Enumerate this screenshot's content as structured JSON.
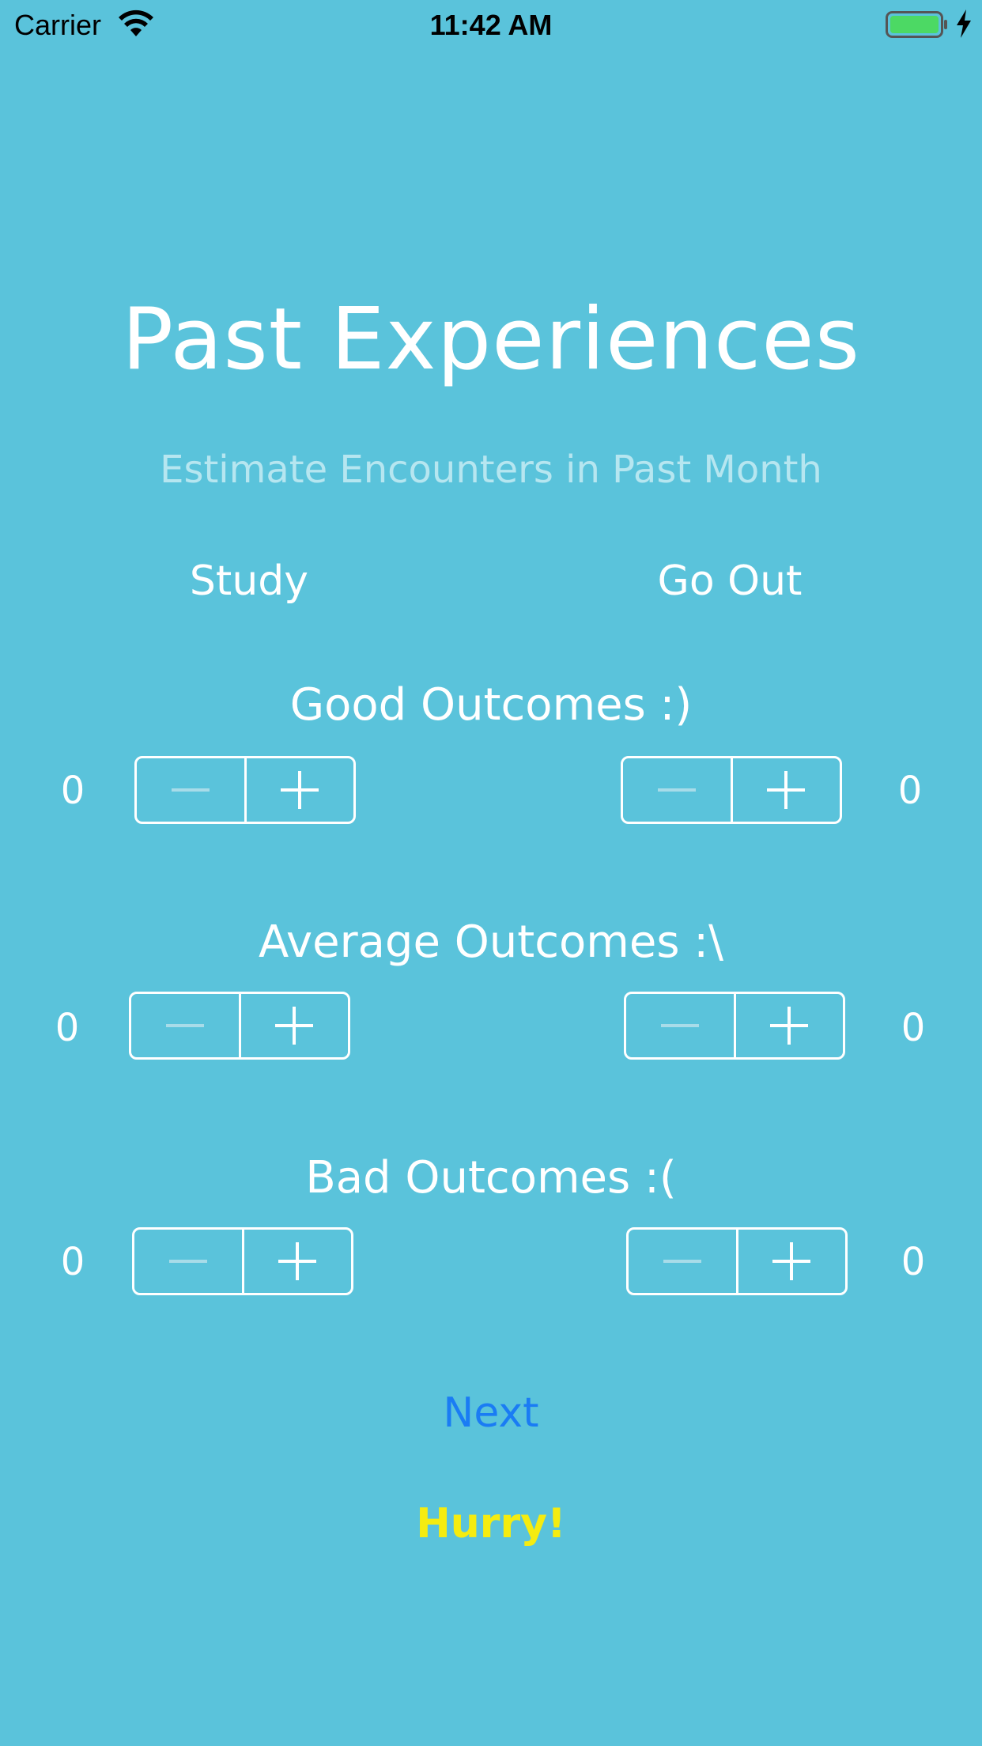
{
  "status_bar": {
    "carrier": "Carrier",
    "time": "11:42 AM",
    "battery_color": "#4cd964"
  },
  "title": "Past Experiences",
  "subtitle": "Estimate Encounters in Past Month",
  "columns": {
    "left": "Study",
    "right": "Go Out"
  },
  "sections": [
    {
      "label": "Good Outcomes :)",
      "study_count": "0",
      "goout_count": "0"
    },
    {
      "label": "Average Outcomes :\\",
      "study_count": "0",
      "goout_count": "0"
    },
    {
      "label": "Bad Outcomes :(",
      "study_count": "0",
      "goout_count": "0"
    }
  ],
  "next_label": "Next",
  "hurry_label": "Hurry!",
  "colors": {
    "background": "#5ac3db",
    "next": "#1a7cf4",
    "hurry": "#f5ec10",
    "subtitle": "#b6e6f0"
  }
}
